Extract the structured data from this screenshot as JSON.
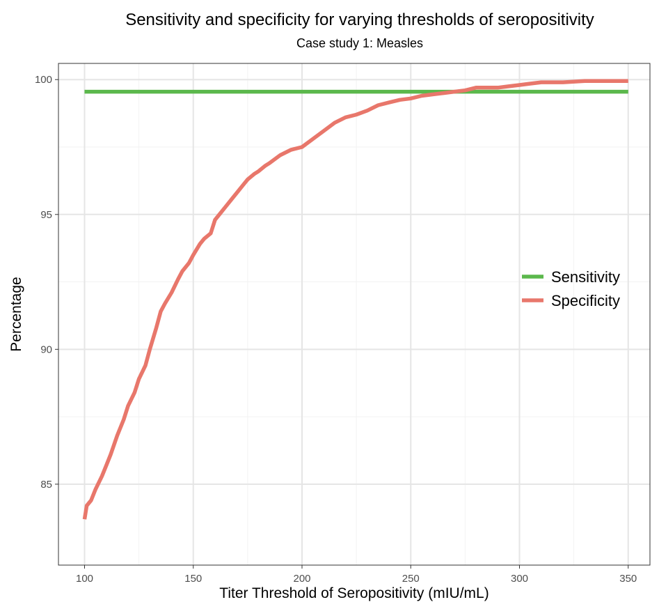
{
  "chart_data": {
    "type": "line",
    "title": "Sensitivity and specificity for varying thresholds of seropositivity",
    "subtitle": "Case study 1: Measles",
    "xlabel": "Titer Threshold of Seropositivity (mIU/mL)",
    "ylabel": "Percentage",
    "xlim": [
      88,
      360
    ],
    "ylim": [
      82,
      100.6
    ],
    "x_ticks": [
      100,
      150,
      200,
      250,
      300,
      350
    ],
    "y_ticks": [
      85,
      90,
      95,
      100
    ],
    "grid": true,
    "legend_position": "right",
    "series": [
      {
        "name": "Sensitivity",
        "color": "#5BB84C",
        "x": [
          100,
          350
        ],
        "y": [
          99.55,
          99.55
        ]
      },
      {
        "name": "Specificity",
        "color": "#E8776B",
        "x": [
          100,
          101,
          103,
          105,
          108,
          110,
          112,
          115,
          118,
          120,
          123,
          125,
          128,
          130,
          133,
          135,
          137,
          140,
          143,
          145,
          148,
          150,
          153,
          155,
          158,
          160,
          163,
          165,
          168,
          170,
          173,
          175,
          178,
          180,
          183,
          185,
          190,
          195,
          200,
          205,
          210,
          215,
          220,
          225,
          230,
          235,
          240,
          245,
          250,
          255,
          260,
          265,
          270,
          275,
          280,
          285,
          290,
          295,
          300,
          305,
          310,
          320,
          330,
          340,
          350
        ],
        "y": [
          83.7,
          84.2,
          84.4,
          84.8,
          85.3,
          85.7,
          86.1,
          86.8,
          87.4,
          87.9,
          88.4,
          88.9,
          89.4,
          90.0,
          90.8,
          91.4,
          91.7,
          92.1,
          92.6,
          92.9,
          93.2,
          93.5,
          93.9,
          94.1,
          94.3,
          94.8,
          95.1,
          95.3,
          95.6,
          95.8,
          96.1,
          96.3,
          96.5,
          96.6,
          96.8,
          96.9,
          97.2,
          97.4,
          97.5,
          97.8,
          98.1,
          98.4,
          98.6,
          98.7,
          98.85,
          99.05,
          99.15,
          99.25,
          99.3,
          99.4,
          99.45,
          99.5,
          99.55,
          99.6,
          99.7,
          99.7,
          99.7,
          99.75,
          99.8,
          99.85,
          99.9,
          99.9,
          99.95,
          99.95,
          99.95
        ]
      }
    ]
  }
}
